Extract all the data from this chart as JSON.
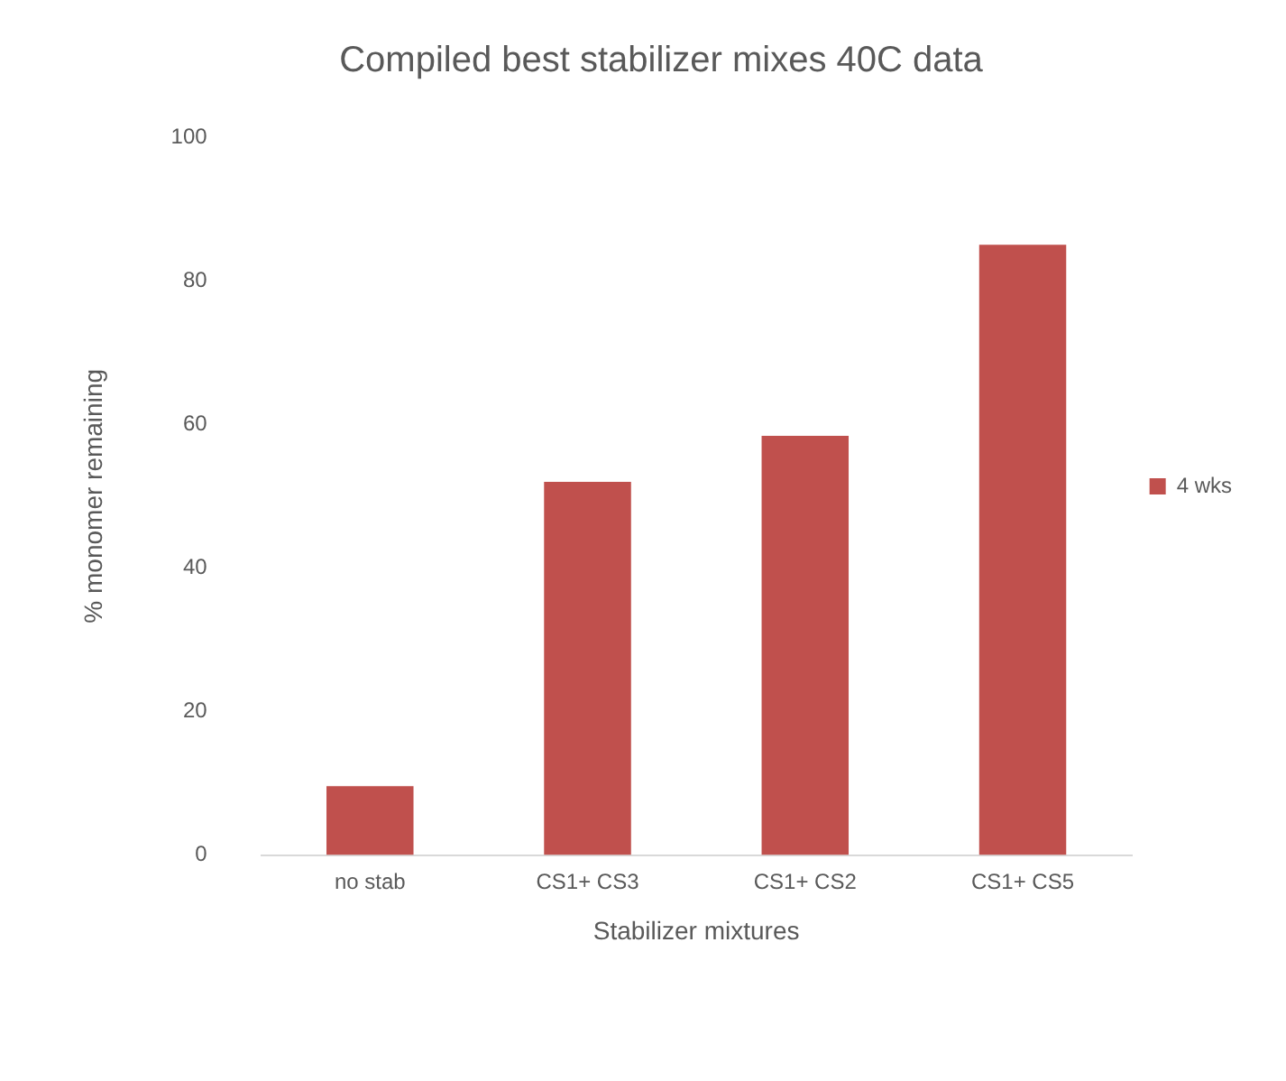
{
  "chart_data": {
    "type": "bar",
    "title": "Compiled best stabilizer mixes 40C data",
    "xlabel": "Stabilizer mixtures",
    "ylabel": "% monomer remaining",
    "categories": [
      "no stab",
      "CS1+ CS3",
      "CS1+ CS2",
      "CS1+ CS5"
    ],
    "series": [
      {
        "name": "4 wks",
        "color": "#c0504d",
        "values": [
          9.6,
          52,
          58.4,
          85
        ]
      }
    ],
    "ylim": [
      0,
      100
    ],
    "yticks": [
      0,
      20,
      40,
      60,
      80,
      100
    ],
    "grid": false,
    "legend": "right"
  }
}
